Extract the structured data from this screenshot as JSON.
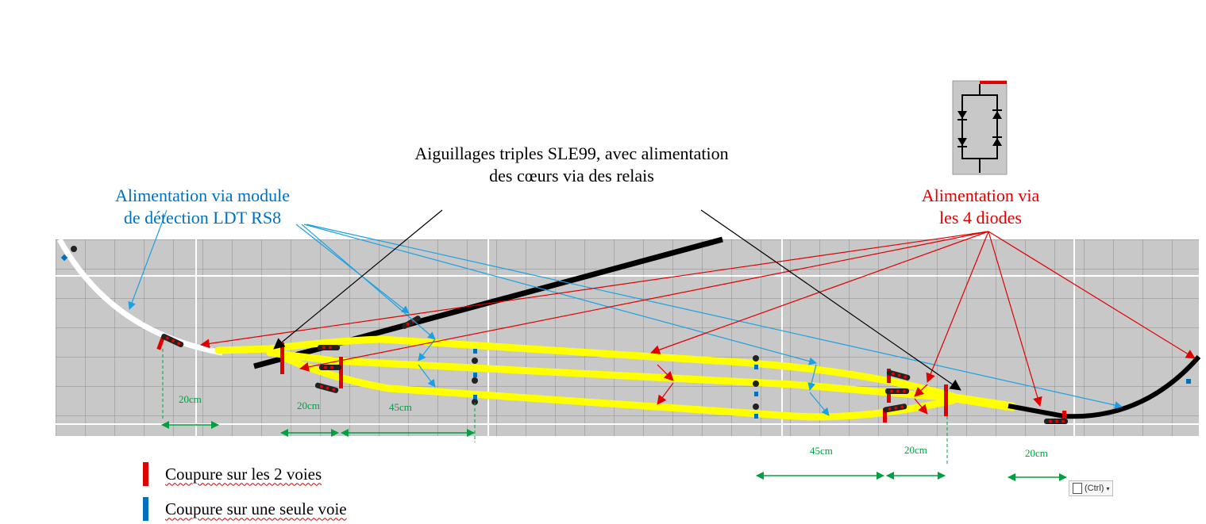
{
  "labels": {
    "title_line1": "Aiguillages triples SLE99, avec alimentation",
    "title_line2": "des cœurs via des relais",
    "blue_line1": "Alimentation via module",
    "blue_line2": "de détection LDT RS8",
    "red_line1": "Alimentation via",
    "red_line2": "les 4 diodes"
  },
  "distances": [
    "20cm",
    "20cm",
    "45cm",
    "45cm",
    "20cm",
    "20cm"
  ],
  "legend": {
    "both_label": "Coupure sur les 2 voies",
    "single_label": "Coupure sur une seule voie",
    "both_color": "#e00000",
    "single_color": "#0070c0"
  },
  "paste_button": "(Ctrl)",
  "colors": {
    "grid_bg": "#c8c8c8",
    "track_yellow": "#ffff00",
    "track_black": "#000000",
    "track_white": "#ffffff",
    "arrow_blue": "#1ba1e2",
    "arrow_red": "#e00000",
    "dim_green": "#00a040"
  }
}
